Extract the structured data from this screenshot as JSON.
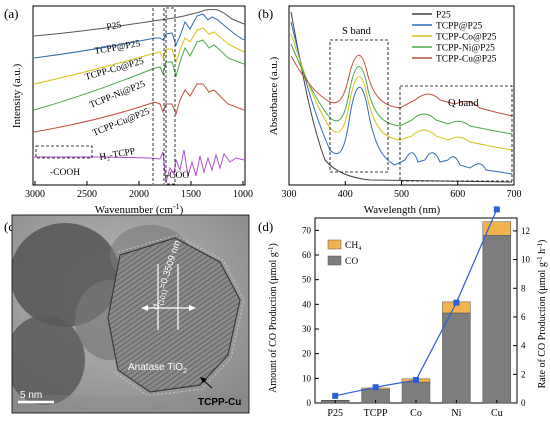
{
  "chart_data": [
    {
      "panel": "(a)",
      "type": "line",
      "xlabel": "Wavenumber (cm",
      "xlabel_sup": "-1",
      "xlabel_tail": ")",
      "ylabel": "Intensity (a.u.)",
      "x_ticks": [
        "3000",
        "2500",
        "2000",
        "1500",
        "1000"
      ],
      "xlim": [
        3000,
        1000
      ],
      "series": [
        {
          "name": "P25",
          "color": "#555555"
        },
        {
          "name": "TCPP@P25",
          "color": "#2f6db5"
        },
        {
          "name": "TCPP-Co@P25",
          "color": "#d9c21a"
        },
        {
          "name": "TCPP-Ni@P25",
          "color": "#4aa84a"
        },
        {
          "name": "TCPP-Cu@P25",
          "color": "#c0503c"
        },
        {
          "name": "H₂-TCPP",
          "color": "#b44fd0"
        }
      ],
      "annotations": [
        "-COOH",
        "-COO"
      ]
    },
    {
      "panel": "(b)",
      "type": "line",
      "xlabel": "Wavelength (nm)",
      "ylabel": "Absorbance (a.u.)",
      "x_ticks": [
        "300",
        "400",
        "500",
        "600",
        "700"
      ],
      "xlim": [
        300,
        700
      ],
      "series": [
        {
          "name": "P25",
          "color": "#444444"
        },
        {
          "name": "TCPP@P25",
          "color": "#2f6db5"
        },
        {
          "name": "TCPP-Co@P25",
          "color": "#d9c21a"
        },
        {
          "name": "TCPP-Ni@P25",
          "color": "#4aa84a"
        },
        {
          "name": "TCPP-Cu@P25",
          "color": "#c0503c"
        }
      ],
      "annotations": [
        "S band",
        "Q band"
      ]
    },
    {
      "panel": "(d)",
      "type": "bar",
      "categories": [
        "P25",
        "TCPP",
        "Co",
        "Ni",
        "Cu"
      ],
      "series": [
        {
          "name": "CO",
          "color": "#7d7d7d",
          "values": [
            0.9,
            5.5,
            8.5,
            36.5,
            68.0
          ]
        },
        {
          "name": "CH₄",
          "color": "#f2b24e",
          "values": [
            0.2,
            0.6,
            1.3,
            4.5,
            5.5
          ]
        }
      ],
      "rate_series": {
        "color": "#2b5fd9",
        "values": [
          0.5,
          1.1,
          1.6,
          7.0,
          13.5
        ]
      },
      "ylabel": "Amount of CO Production (μmol g",
      "ylabel_sup": "-1",
      "ylabel_tail": ")",
      "y2label": "Rate of CO Production (μmol g",
      "y2label_sup1": "-1",
      "y2label_mid": " h",
      "y2label_sup2": "-1",
      "y2label_tail": ")",
      "ylim": [
        0,
        75
      ],
      "y2lim": [
        0,
        12.9
      ],
      "y_ticks": [
        "0",
        "10",
        "20",
        "30",
        "40",
        "50",
        "60",
        "70"
      ],
      "y2_ticks": [
        "0",
        "2",
        "4",
        "6",
        "8",
        "10",
        "12"
      ],
      "legend": [
        "CH₄",
        "CO"
      ]
    }
  ],
  "panel_c": {
    "label": "(c)",
    "d_label": "d",
    "d_sub": "(101)",
    "d_value": "=0.3509 nm",
    "phase_label": "Anatase TiO",
    "phase_sub": "2",
    "coating_label": "TCPP-Cu",
    "scale_label": "5 nm"
  }
}
